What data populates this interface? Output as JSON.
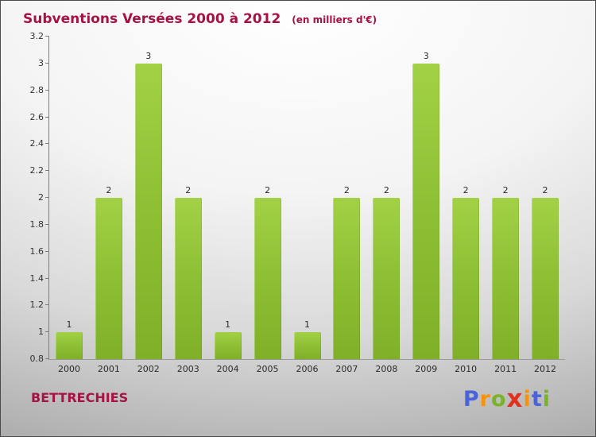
{
  "title": "Subventions Versées 2000 à 2012",
  "subtitle": "(en milliers d'€)",
  "footer": {
    "commune": "BETTRECHIES",
    "logo_letters": [
      {
        "char": "P",
        "color": "#4a63d8"
      },
      {
        "char": "r",
        "color": "#f5930a"
      },
      {
        "char": "o",
        "color": "#7ab32a"
      },
      {
        "char": "x",
        "color": "#e03020"
      },
      {
        "char": "i",
        "color": "#f5930a"
      },
      {
        "char": "t",
        "color": "#4a63d8"
      },
      {
        "char": "i",
        "color": "#7ab32a"
      }
    ]
  },
  "colors": {
    "title_text": "#a61243",
    "bar_gradient_top": "#a2d145",
    "bar_gradient_bottom": "#7fb028",
    "axis": "#7d7d7d",
    "tick_label": "#333333"
  },
  "chart_data": {
    "type": "bar",
    "title": "Subventions Versées 2000 à 2012",
    "subtitle": "(en milliers d'€)",
    "xlabel": "",
    "ylabel": "",
    "categories": [
      "2000",
      "2001",
      "2002",
      "2003",
      "2004",
      "2005",
      "2006",
      "2007",
      "2008",
      "2009",
      "2010",
      "2011",
      "2012"
    ],
    "values": [
      1,
      2,
      3,
      2,
      1,
      2,
      1,
      2,
      2,
      3,
      2,
      2,
      2
    ],
    "ylim": [
      0.8,
      3.2
    ],
    "yticks": [
      0.8,
      1,
      1.2,
      1.4,
      1.6,
      1.8,
      2,
      2.2,
      2.4,
      2.6,
      2.8,
      3,
      3.2
    ],
    "grid": false,
    "legend": false,
    "value_labels_shown": true
  }
}
